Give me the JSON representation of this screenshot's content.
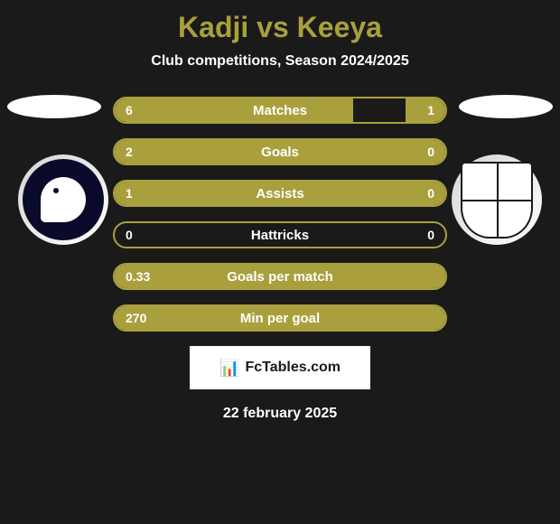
{
  "title": {
    "player1": "Kadji",
    "vs": "vs",
    "player2": "Keeya",
    "color": "#a9a03d",
    "fontsize": 32
  },
  "subtitle": "Club competitions, Season 2024/2025",
  "stats": [
    {
      "label": "Matches",
      "left_value": "6",
      "right_value": "1",
      "left_fill_pct": 72,
      "right_fill_pct": 12
    },
    {
      "label": "Goals",
      "left_value": "2",
      "right_value": "0",
      "left_fill_pct": 100,
      "right_fill_pct": 0
    },
    {
      "label": "Assists",
      "left_value": "1",
      "right_value": "0",
      "left_fill_pct": 100,
      "right_fill_pct": 0
    },
    {
      "label": "Hattricks",
      "left_value": "0",
      "right_value": "0",
      "left_fill_pct": 0,
      "right_fill_pct": 0
    },
    {
      "label": "Goals per match",
      "left_value": "0.33",
      "right_value": "",
      "left_fill_pct": 100,
      "right_fill_pct": 0
    },
    {
      "label": "Min per goal",
      "left_value": "270",
      "right_value": "",
      "left_fill_pct": 100,
      "right_fill_pct": 0
    }
  ],
  "colors": {
    "accent": "#a9a03d",
    "background": "#1a1a1a",
    "text": "#ffffff",
    "footer_bg": "#ffffff"
  },
  "footer": {
    "brand": "FcTables.com",
    "date": "22 february 2025"
  }
}
